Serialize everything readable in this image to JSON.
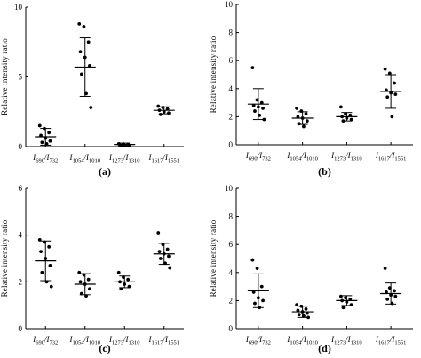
{
  "chart_data": [
    {
      "type": "scatter",
      "panel_label": "(a)",
      "ylabel": "Relative  intensity  ratio",
      "ylim": [
        0,
        10
      ],
      "yticks": [
        0,
        5,
        10
      ],
      "categories": [
        {
          "main": "I",
          "sub1": "690",
          "sep": "/I",
          "sub2": "732"
        },
        {
          "main": "I",
          "sub1": "1054",
          "sep": "/I",
          "sub2": "1010"
        },
        {
          "main": "I",
          "sub1": "1273",
          "sep": "/I",
          "sub2": "1310"
        },
        {
          "main": "I",
          "sub1": "1617",
          "sep": "/I",
          "sub2": "1551"
        }
      ],
      "groups": [
        {
          "mean": 0.7,
          "sd": 0.6,
          "points": [
            1.5,
            1.3,
            1.0,
            0.8,
            0.6,
            0.4,
            0.3,
            0.2
          ]
        },
        {
          "mean": 5.7,
          "sd": 2.1,
          "points": [
            8.8,
            8.6,
            7.5,
            6.8,
            6.4,
            5.8,
            5.2,
            3.8,
            2.8
          ]
        },
        {
          "mean": 0.15,
          "sd": 0.1,
          "points": [
            0.2,
            0.18,
            0.15,
            0.12,
            0.1,
            0.08,
            0.05
          ]
        },
        {
          "mean": 2.6,
          "sd": 0.25,
          "points": [
            2.9,
            2.8,
            2.7,
            2.6,
            2.5,
            2.4,
            2.3
          ]
        }
      ]
    },
    {
      "type": "scatter",
      "panel_label": "(b)",
      "ylabel": "Relative  intensity  ratio",
      "ylim": [
        0,
        10
      ],
      "yticks": [
        0,
        2,
        4,
        6,
        8,
        10
      ],
      "categories": [
        {
          "main": "I",
          "sub1": "690",
          "sep": "/I",
          "sub2": "732"
        },
        {
          "main": "I",
          "sub1": "1054",
          "sep": "/I",
          "sub2": "1010"
        },
        {
          "main": "I",
          "sub1": "1273",
          "sep": "/I",
          "sub2": "1310"
        },
        {
          "main": "I",
          "sub1": "1617",
          "sep": "/I",
          "sub2": "1551"
        }
      ],
      "groups": [
        {
          "mean": 2.9,
          "sd": 1.1,
          "points": [
            5.5,
            3.2,
            3.0,
            2.8,
            2.7,
            2.6,
            2.4,
            2.1,
            1.8
          ]
        },
        {
          "mean": 1.9,
          "sd": 0.45,
          "points": [
            2.6,
            2.4,
            2.2,
            2.0,
            1.9,
            1.7,
            1.5,
            1.3
          ]
        },
        {
          "mean": 2.0,
          "sd": 0.3,
          "points": [
            2.7,
            2.2,
            2.1,
            2.0,
            1.9,
            1.8,
            1.7
          ]
        },
        {
          "mean": 3.8,
          "sd": 1.2,
          "points": [
            5.4,
            5.1,
            4.4,
            3.9,
            3.7,
            3.6,
            3.4,
            2.0
          ]
        }
      ]
    },
    {
      "type": "scatter",
      "panel_label": "(c)",
      "ylabel": "Relative  intensity  ratio",
      "ylim": [
        0,
        6
      ],
      "yticks": [
        0,
        2,
        4,
        6
      ],
      "categories": [
        {
          "main": "I",
          "sub1": "690",
          "sep": "/I",
          "sub2": "732"
        },
        {
          "main": "I",
          "sub1": "1054",
          "sep": "/I",
          "sub2": "1010"
        },
        {
          "main": "I",
          "sub1": "1273",
          "sep": "/I",
          "sub2": "1310"
        },
        {
          "main": "I",
          "sub1": "1617",
          "sep": "/I",
          "sub2": "1551"
        }
      ],
      "groups": [
        {
          "mean": 2.9,
          "sd": 0.85,
          "points": [
            3.8,
            3.7,
            3.5,
            3.3,
            3.0,
            2.7,
            2.4,
            2.0,
            1.8
          ]
        },
        {
          "mean": 1.9,
          "sd": 0.45,
          "points": [
            2.4,
            2.3,
            2.1,
            2.0,
            1.9,
            1.7,
            1.5,
            1.4
          ]
        },
        {
          "mean": 2.0,
          "sd": 0.25,
          "points": [
            2.4,
            2.2,
            2.1,
            2.0,
            1.9,
            1.8,
            1.7
          ]
        },
        {
          "mean": 3.2,
          "sd": 0.45,
          "points": [
            4.1,
            3.6,
            3.4,
            3.3,
            3.2,
            3.1,
            3.0,
            2.8,
            2.6
          ]
        }
      ]
    },
    {
      "type": "scatter",
      "panel_label": "(d)",
      "ylabel": "Relative  intensity  ratio",
      "ylim": [
        0,
        10
      ],
      "yticks": [
        0,
        2,
        4,
        6,
        8,
        10
      ],
      "categories": [
        {
          "main": "I",
          "sub1": "690",
          "sep": "/I",
          "sub2": "732"
        },
        {
          "main": "I",
          "sub1": "1054",
          "sep": "/I",
          "sub2": "1010"
        },
        {
          "main": "I",
          "sub1": "1273",
          "sep": "/I",
          "sub2": "1310"
        },
        {
          "main": "I",
          "sub1": "1617",
          "sep": "/I",
          "sub2": "1551"
        }
      ],
      "groups": [
        {
          "mean": 2.7,
          "sd": 1.2,
          "points": [
            4.9,
            4.3,
            3.0,
            2.6,
            2.2,
            2.0,
            1.8,
            1.5
          ]
        },
        {
          "mean": 1.2,
          "sd": 0.4,
          "points": [
            1.7,
            1.6,
            1.4,
            1.3,
            1.2,
            1.1,
            1.0,
            0.9,
            0.8
          ]
        },
        {
          "mean": 2.0,
          "sd": 0.35,
          "points": [
            2.3,
            2.2,
            2.1,
            2.0,
            1.9,
            1.7,
            1.5
          ]
        },
        {
          "mean": 2.5,
          "sd": 0.75,
          "points": [
            4.3,
            2.9,
            2.7,
            2.6,
            2.4,
            2.3,
            2.1,
            1.8
          ]
        }
      ]
    }
  ]
}
